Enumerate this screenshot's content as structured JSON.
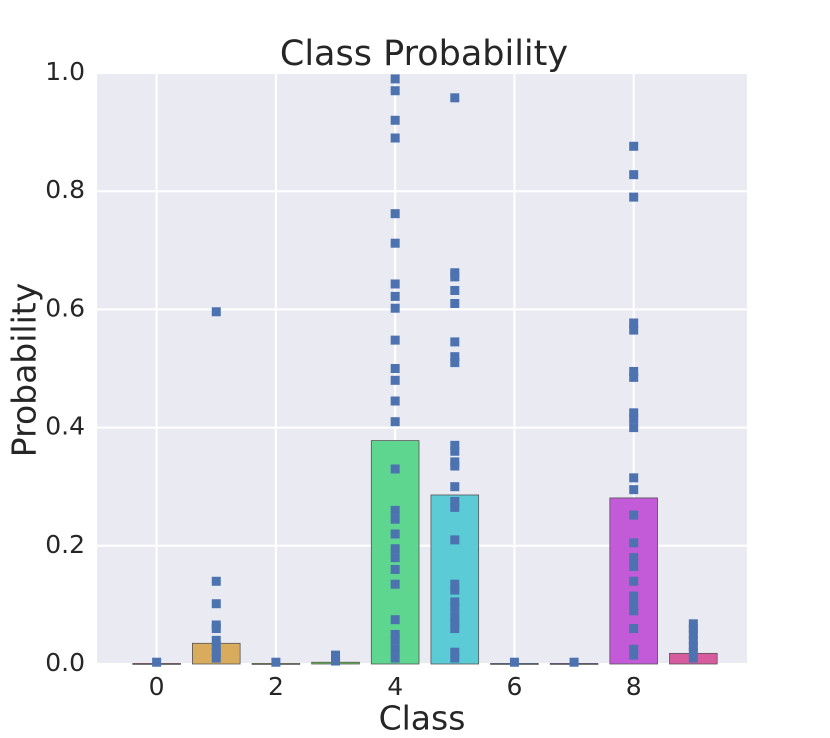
{
  "chart_data": {
    "type": "bar",
    "title": "Class Probability",
    "xlabel": "Class",
    "ylabel": "Probability",
    "x": [
      0,
      1,
      2,
      3,
      4,
      5,
      6,
      7,
      8,
      9
    ],
    "values": [
      0.001,
      0.035,
      0.001,
      0.003,
      0.378,
      0.286,
      0.001,
      0.001,
      0.281,
      0.018
    ],
    "colors": [
      "#db5f7a",
      "#d8ac5c",
      "#a8c35b",
      "#6ec85b",
      "#5fd68f",
      "#5bcbd6",
      "#5b8fd6",
      "#8f5bd6",
      "#c35bd8",
      "#d65b9f"
    ],
    "scatter": {
      "color": "#4c72b0",
      "x": [
        0,
        1,
        1,
        1,
        1,
        1,
        1,
        1,
        1,
        1,
        2,
        3,
        3,
        3,
        4,
        4,
        4,
        4,
        4,
        4,
        4,
        4,
        4,
        4,
        4,
        4,
        4,
        4,
        4,
        4,
        4,
        4,
        4,
        4,
        4,
        4,
        4,
        4,
        4,
        4,
        4,
        5,
        5,
        5,
        5,
        5,
        5,
        5,
        5,
        5,
        5,
        5,
        5,
        5,
        5,
        5,
        5,
        5,
        5,
        5,
        5,
        5,
        5,
        5,
        5,
        5,
        6,
        7,
        8,
        8,
        8,
        8,
        8,
        8,
        8,
        8,
        8,
        8,
        8,
        8,
        8,
        8,
        8,
        8,
        8,
        8,
        8,
        8,
        8,
        8,
        8,
        9,
        9,
        9,
        9,
        9,
        9,
        9
      ],
      "y": [
        0.003,
        0.596,
        0.14,
        0.102,
        0.066,
        0.06,
        0.04,
        0.03,
        0.02,
        0.01,
        0.003,
        0.015,
        0.01,
        0.005,
        0.99,
        0.97,
        0.92,
        0.89,
        0.762,
        0.712,
        0.643,
        0.622,
        0.602,
        0.548,
        0.5,
        0.48,
        0.445,
        0.41,
        0.33,
        0.26,
        0.245,
        0.22,
        0.195,
        0.18,
        0.16,
        0.135,
        0.075,
        0.05,
        0.04,
        0.025,
        0.01,
        0.958,
        0.662,
        0.655,
        0.632,
        0.61,
        0.545,
        0.52,
        0.51,
        0.37,
        0.36,
        0.342,
        0.335,
        0.3,
        0.275,
        0.265,
        0.21,
        0.135,
        0.125,
        0.105,
        0.095,
        0.08,
        0.07,
        0.06,
        0.02,
        0.01,
        0.003,
        0.003,
        0.876,
        0.828,
        0.79,
        0.577,
        0.565,
        0.495,
        0.485,
        0.425,
        0.415,
        0.4,
        0.315,
        0.295,
        0.252,
        0.205,
        0.18,
        0.165,
        0.14,
        0.115,
        0.1,
        0.09,
        0.06,
        0.025,
        0.015,
        0.068,
        0.06,
        0.05,
        0.04,
        0.03,
        0.02,
        0.01
      ]
    },
    "xlim": [
      -1,
      9.9
    ],
    "ylim": [
      0,
      1
    ],
    "xticks": [
      0,
      2,
      4,
      6,
      8
    ],
    "yticks": [
      {
        "value": 0,
        "label": "0.0"
      },
      {
        "value": 0.2,
        "label": "0.2"
      },
      {
        "value": 0.4,
        "label": "0.4"
      },
      {
        "value": 0.6,
        "label": "0.6"
      },
      {
        "value": 0.8,
        "label": "0.8"
      },
      {
        "value": 1,
        "label": "1.0"
      }
    ],
    "grid": true
  }
}
